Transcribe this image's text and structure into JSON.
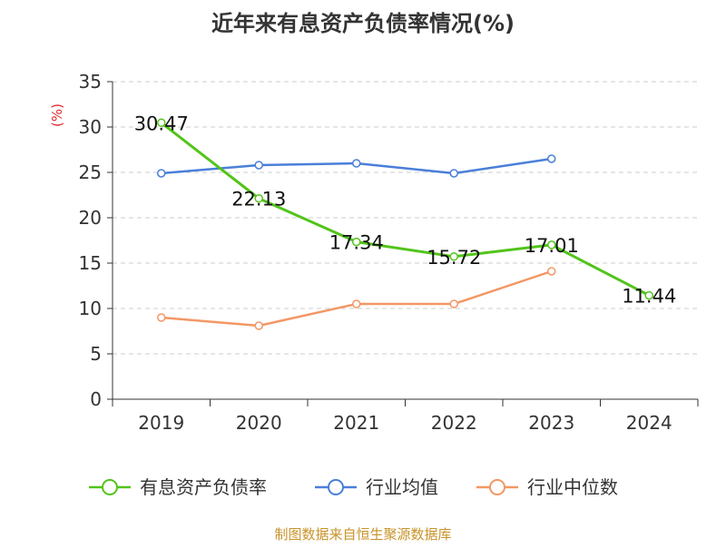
{
  "chart_data": {
    "type": "line",
    "title": "近年来有息资产负债率情况(%)",
    "ylabel": "(%)",
    "xlabel": "",
    "categories": [
      "2019",
      "2020",
      "2021",
      "2022",
      "2023",
      "2024"
    ],
    "y_ticks": [
      "0",
      "5",
      "10",
      "15",
      "20",
      "25",
      "30",
      "35"
    ],
    "ylim": [
      0,
      35
    ],
    "grid": "horizontal dashed",
    "legend_position": "bottom",
    "series": [
      {
        "name": "有息资产负债率",
        "color": "#52c41a",
        "values": [
          30.47,
          22.13,
          17.34,
          15.72,
          17.01,
          11.44
        ],
        "labels": [
          "30.47",
          "22.13",
          "17.34",
          "15.72",
          "17.01",
          "11.44"
        ]
      },
      {
        "name": "行业均值",
        "color": "#4a7fd9",
        "values": [
          24.9,
          25.8,
          26.0,
          24.9,
          26.5,
          null
        ]
      },
      {
        "name": "行业中位数",
        "color": "#f39765",
        "values": [
          9.0,
          8.1,
          10.5,
          10.5,
          14.1,
          null
        ]
      }
    ],
    "source": "制图数据来自恒生聚源数据库"
  }
}
